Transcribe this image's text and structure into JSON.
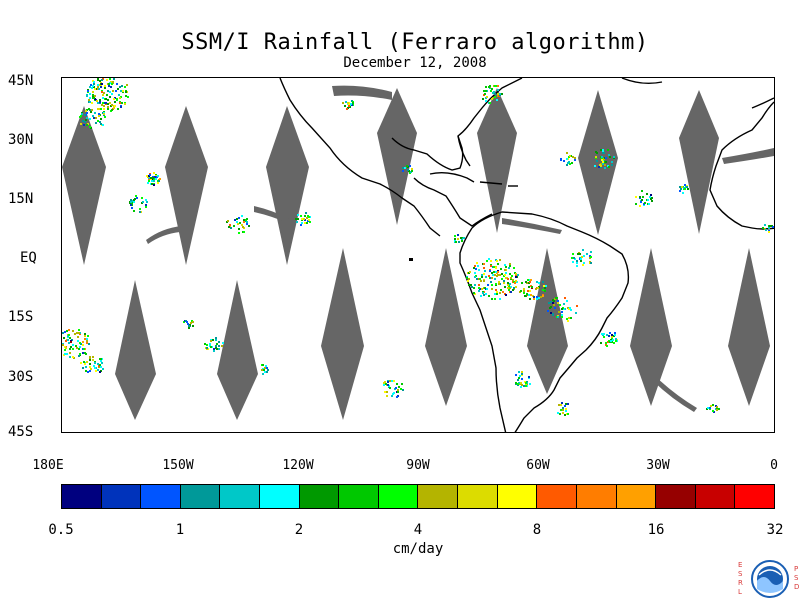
{
  "title": "SSM/I Rainfall (Ferraro algorithm)",
  "date": "December 12, 2008",
  "map": {
    "lat_labels": [
      "45N",
      "30N",
      "15N",
      "EQ",
      "15S",
      "30S",
      "45S"
    ],
    "lon_labels": [
      "180E",
      "150W",
      "120W",
      "90W",
      "60W",
      "30W",
      "0"
    ],
    "lat_range": [
      -45,
      45
    ],
    "lon_range": [
      -180,
      0
    ],
    "no_data_color": "#666666",
    "coastline_color": "#000000"
  },
  "colorbar": {
    "unit": "cm/day",
    "tick_labels": [
      "0.5",
      "1",
      "2",
      "4",
      "8",
      "16",
      "32"
    ],
    "colors": [
      "#00007f",
      "#0033bb",
      "#0055ff",
      "#009999",
      "#00c8c8",
      "#00ffff",
      "#009900",
      "#00c800",
      "#00ff00",
      "#b4b400",
      "#dcdc00",
      "#ffff00",
      "#ff5a00",
      "#ff7d00",
      "#ffa000",
      "#960000",
      "#c80000",
      "#ff0000"
    ]
  },
  "logo": {
    "left_letters": [
      "E",
      "S",
      "R",
      "L"
    ],
    "right_letters": [
      "P",
      "S",
      "D"
    ]
  }
}
